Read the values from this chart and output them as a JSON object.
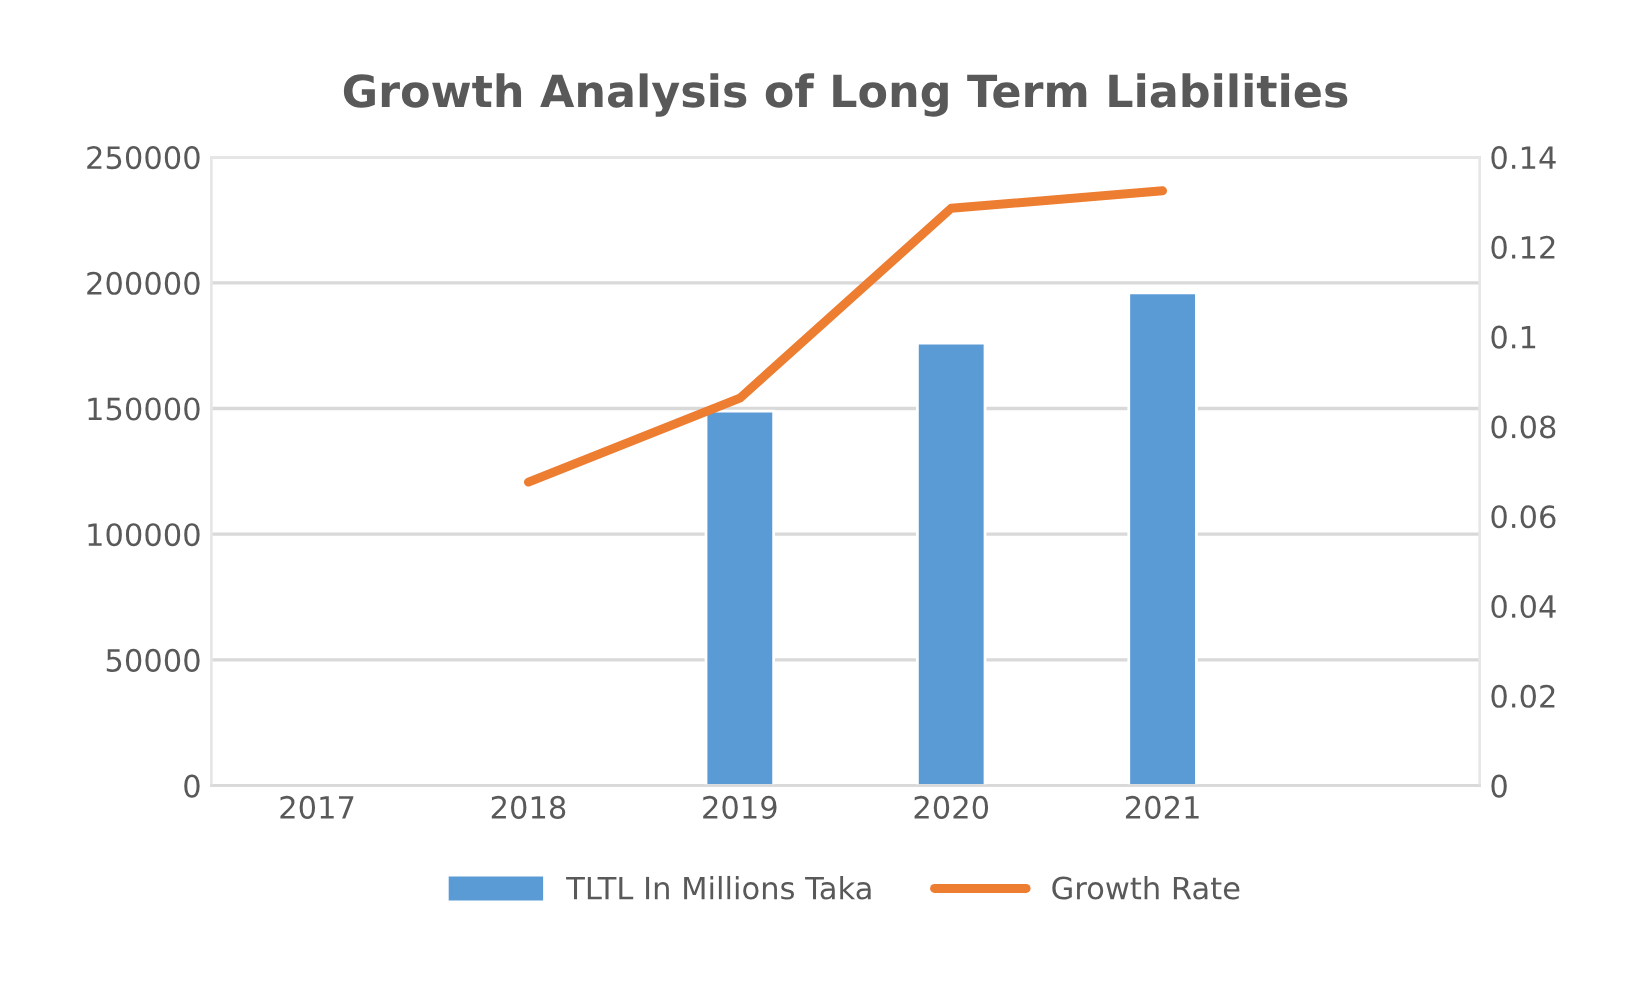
{
  "chart_data": {
    "type": "bar",
    "title": "Growth Analysis of Long Term Liabilities",
    "categories": [
      "2017",
      "2018",
      "2019",
      "2020",
      "2021",
      null
    ],
    "series": [
      {
        "name": "TLTL In Millions Taka",
        "color": "#5b9bd5",
        "values": [
          null,
          null,
          149000,
          176000,
          196000,
          null
        ]
      },
      {
        "name": "Growth Rate",
        "type": "line",
        "axis": "y2",
        "color": "#ed7d31",
        "values": [
          null,
          0.0676,
          0.0863,
          0.1286,
          0.1325,
          null
        ]
      }
    ],
    "ylim": [
      0,
      250000
    ],
    "yticks": [
      0,
      50000,
      100000,
      150000,
      200000,
      250000
    ],
    "y2lim": [
      0,
      0.14
    ],
    "y2ticks": [
      0,
      0.02,
      0.04,
      0.06,
      0.08,
      0.1,
      0.12,
      0.14
    ],
    "grid": "y",
    "legend": "bottom",
    "marker": "none",
    "line_style": "solid"
  }
}
